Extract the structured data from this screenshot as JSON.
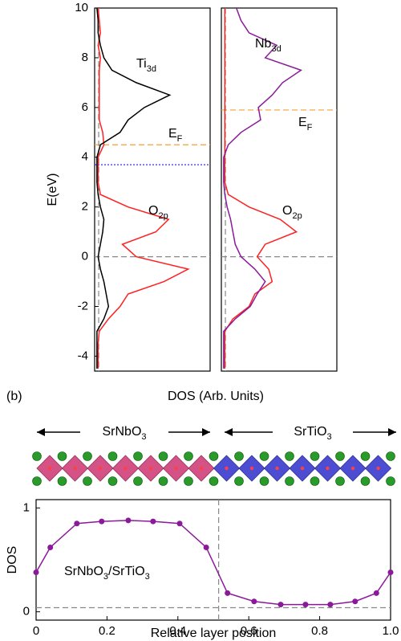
{
  "chart_data": [
    {
      "type": "line",
      "ylabel": "E(eV)",
      "xlabel": "DOS (Arb. Units)",
      "ylim": [
        -4.6,
        10
      ],
      "yticks": [
        -4,
        -2,
        0,
        2,
        4,
        6,
        8,
        10
      ],
      "xlim": [
        0,
        1
      ],
      "y": [
        -4.5,
        -4,
        -3.5,
        -3,
        -2.5,
        -2,
        -1.5,
        -1,
        -0.5,
        0,
        0.5,
        1,
        1.5,
        2,
        2.5,
        3,
        3.5,
        4,
        4.5,
        5,
        5.5,
        6,
        6.5,
        7,
        7.5,
        8,
        8.5,
        9,
        9.5,
        10
      ],
      "series": [
        {
          "color": "#ff2020",
          "values": [
            0.03,
            0.03,
            0.03,
            0.04,
            0.12,
            0.22,
            0.29,
            0.6,
            0.81,
            0.36,
            0.24,
            0.53,
            0.64,
            0.29,
            0.05,
            0.03,
            0.03,
            0.03,
            0.08,
            0.07,
            0.04,
            0.04,
            0.04,
            0.04,
            0.04,
            0.05,
            0.03,
            0.05,
            0.04,
            0.03
          ]
        },
        {
          "color": "#000000",
          "values": [
            0.02,
            0.02,
            0.02,
            0.02,
            0.08,
            0.12,
            0.1,
            0.08,
            0.05,
            0.03,
            0.05,
            0.07,
            0.08,
            0.05,
            0.03,
            0.02,
            0.02,
            0.02,
            0.05,
            0.22,
            0.29,
            0.43,
            0.65,
            0.36,
            0.15,
            0.08,
            0.05,
            0.03,
            0.03,
            0.02
          ]
        }
      ],
      "hlines": [
        {
          "value": 0,
          "color": "#888888",
          "style": "dashed"
        },
        {
          "value": 4.5,
          "color": "#f5a030",
          "style": "dashed"
        },
        {
          "value": 3.7,
          "color": "#1a1aff",
          "style": "dotted"
        }
      ],
      "vlines": [
        {
          "value": 0.035,
          "color": "#888888",
          "style": "dashed"
        }
      ],
      "annotations": [
        {
          "color": "#000000",
          "text": [
            {
              "text": "Ti"
            },
            {
              "text": "3d",
              "sub": true
            }
          ]
        },
        {
          "color": "#f5a030",
          "text": [
            {
              "text": "E"
            },
            {
              "text": "F",
              "sub": true
            }
          ]
        },
        {
          "color": "#ff2020",
          "text": [
            {
              "text": "O"
            },
            {
              "text": "2p",
              "sub": true
            }
          ]
        }
      ]
    },
    {
      "type": "line",
      "ylim": [
        -4.6,
        10
      ],
      "xlim": [
        0,
        1
      ],
      "y": [
        -4.5,
        -4,
        -3.5,
        -3,
        -2.5,
        -2,
        -1.5,
        -1,
        -0.5,
        0,
        0.5,
        1,
        1.5,
        2,
        2.5,
        3,
        3.5,
        4,
        4.5,
        5,
        5.5,
        6,
        6.5,
        7,
        7.5,
        8,
        8.5,
        9,
        9.5,
        10
      ],
      "series": [
        {
          "color": "#ff2020",
          "values": [
            0.03,
            0.03,
            0.03,
            0.03,
            0.1,
            0.24,
            0.29,
            0.44,
            0.41,
            0.31,
            0.38,
            0.65,
            0.51,
            0.24,
            0.06,
            0.03,
            0.03,
            0.03,
            0.03,
            0.03,
            0.03,
            0.03,
            0.03,
            0.03,
            0.03,
            0.03,
            0.03,
            0.03,
            0.03,
            0.03
          ]
        },
        {
          "color": "#8b1a9b",
          "values": [
            0.02,
            0.02,
            0.02,
            0.02,
            0.12,
            0.25,
            0.31,
            0.38,
            0.29,
            0.17,
            0.12,
            0.1,
            0.08,
            0.05,
            0.03,
            0.02,
            0.02,
            0.02,
            0.06,
            0.17,
            0.34,
            0.32,
            0.44,
            0.53,
            0.69,
            0.38,
            0.48,
            0.24,
            0.17,
            0.13
          ]
        }
      ],
      "hlines": [
        {
          "value": 0,
          "color": "#888888",
          "style": "dashed"
        },
        {
          "value": 5.9,
          "color": "#f5a030",
          "style": "dashed"
        }
      ],
      "vlines": [
        {
          "value": 0.035,
          "color": "#888888",
          "style": "dashed"
        }
      ],
      "annotations": [
        {
          "color": "#8b1a9b",
          "text": [
            {
              "text": "Nb"
            },
            {
              "text": "3d",
              "sub": true
            }
          ]
        },
        {
          "color": "#f5a030",
          "text": [
            {
              "text": "E"
            },
            {
              "text": "F",
              "sub": true
            }
          ]
        },
        {
          "color": "#ff2020",
          "text": [
            {
              "text": "O"
            },
            {
              "text": "2p",
              "sub": true
            }
          ]
        }
      ]
    },
    {
      "type": "line",
      "ylabel": "DOS",
      "xlabel": "Relative layer position",
      "xlim": [
        0,
        1
      ],
      "ylim": [
        -0.08,
        1.08
      ],
      "xticks": [
        0,
        0.2,
        0.4,
        0.6,
        0.8,
        {
          "value": 1,
          "label": "1.0"
        }
      ],
      "yticks": [
        0,
        1
      ],
      "x": [
        0,
        0.04,
        0.115,
        0.185,
        0.26,
        0.33,
        0.405,
        0.48,
        0.54,
        0.615,
        0.69,
        0.76,
        0.83,
        0.9,
        0.96,
        1
      ],
      "series": [
        {
          "color": "#8b1a9b",
          "values": [
            0.38,
            0.62,
            0.85,
            0.87,
            0.88,
            0.87,
            0.85,
            0.62,
            0.18,
            0.1,
            0.07,
            0.07,
            0.07,
            0.1,
            0.18,
            0.38
          ]
        }
      ],
      "hlines": [
        {
          "value": 0.04,
          "color": "#888888",
          "style": "dashed"
        }
      ],
      "vlines": [
        {
          "value": 0.515,
          "color": "#888888",
          "style": "dashed"
        }
      ],
      "annotations": [
        {
          "color": "#8b1a9b",
          "text": [
            {
              "text": "SrNbO"
            },
            {
              "text": "3",
              "sub": true
            },
            {
              "text": "/SrTiO"
            },
            {
              "text": "3",
              "sub": true
            }
          ]
        }
      ]
    }
  ],
  "panel_label": "(b)",
  "structure": {
    "left_label": [
      {
        "text": "SrNbO"
      },
      {
        "text": "3",
        "sub": true
      }
    ],
    "right_label": [
      {
        "text": "SrTiO"
      },
      {
        "text": "3",
        "sub": true
      }
    ]
  }
}
